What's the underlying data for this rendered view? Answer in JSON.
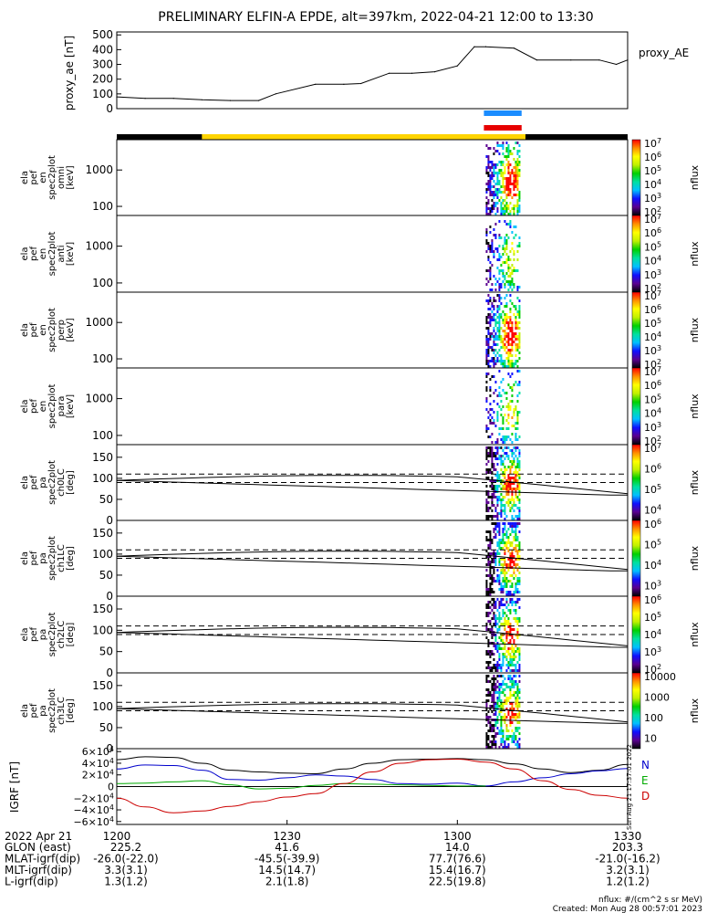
{
  "title": "PRELIMINARY ELFIN-A EPDE, alt=397km, 2022-04-21 12:00 to 13:30",
  "colors": {
    "science_zone_blue": "#1a8cff",
    "science_zone_red": "#e60000",
    "orbit_bar_black": "#000000",
    "orbit_bar_yellow": "#ffd400",
    "field_N": "#0000cc",
    "field_E": "#00aa00",
    "field_D": "#cc0000"
  },
  "colorbar_stops": [
    "#000000",
    "#5a0090",
    "#1010ff",
    "#00c0ff",
    "#00e0a0",
    "#00d000",
    "#c0f000",
    "#ffff00",
    "#ff9000",
    "#ff0000"
  ],
  "time_axis": {
    "ticks": [
      "1200",
      "1230",
      "1300",
      "1330"
    ],
    "date_label": "2022 Apr 21"
  },
  "ephemeris": [
    {
      "label": "GLON (east)",
      "values": [
        "225.2",
        "41.6",
        "14.0",
        "203.3"
      ]
    },
    {
      "label": "MLAT-igrf(dip)",
      "values": [
        "-26.0(-22.0)",
        "-45.5(-39.9)",
        "77.7(76.6)",
        "-21.0(-16.2)"
      ]
    },
    {
      "label": "MLT-igrf(dip)",
      "values": [
        "3.3(3.1)",
        "14.5(14.7)",
        "15.4(16.7)",
        "3.2(3.1)"
      ]
    },
    {
      "label": "L-igrf(dip)",
      "values": [
        "1.3(1.2)",
        "2.1(1.8)",
        "22.5(19.8)",
        "1.2(1.2)"
      ]
    }
  ],
  "footer": {
    "units": "nflux: #/(cm^2 s sr MeV)",
    "created": "Created: Mon Aug 28 00:57:01 2023",
    "side_stamp": "Sun Aug 21 17:37:01 2022"
  },
  "chart_data": [
    {
      "type": "line",
      "panel": "proxy_ae",
      "ylabel": "proxy_ae [nT]",
      "legend": "proxy_AE",
      "ylim": [
        0,
        520
      ],
      "yticks": [
        "500",
        "400",
        "300",
        "200",
        "100",
        "0"
      ],
      "x": [
        "12:00",
        "12:05",
        "12:10",
        "12:15",
        "12:20",
        "12:25",
        "12:28",
        "12:35",
        "12:40",
        "12:43",
        "12:48",
        "12:52",
        "12:56",
        "13:00",
        "13:03",
        "13:05",
        "13:10",
        "13:14",
        "13:20",
        "13:25",
        "13:28",
        "13:30"
      ],
      "values": [
        80,
        70,
        70,
        60,
        55,
        55,
        100,
        165,
        165,
        170,
        240,
        240,
        250,
        290,
        420,
        420,
        410,
        330,
        330,
        330,
        300,
        330
      ]
    },
    {
      "type": "heatmap",
      "panel": "ela pef en spec2plot omni",
      "ylabel": [
        "ela",
        "pef",
        "en",
        "spec2plot",
        "omni",
        "[keV]"
      ],
      "yticks": [
        "1000",
        "100"
      ],
      "colorbar_ticks": [
        "10^7",
        "10^6",
        "10^5",
        "10^4",
        "10^3",
        "10^2"
      ],
      "colorbar_label": "nflux",
      "active_interval": [
        "13:05",
        "13:11"
      ]
    },
    {
      "type": "heatmap",
      "panel": "ela pef en spec2plot anti",
      "ylabel": [
        "ela",
        "pef",
        "en",
        "spec2plot",
        "anti",
        "[keV]"
      ],
      "yticks": [
        "1000",
        "100"
      ],
      "colorbar_ticks": [
        "10^7",
        "10^6",
        "10^5",
        "10^4",
        "10^3",
        "10^2"
      ],
      "colorbar_label": "nflux",
      "active_interval": [
        "13:05",
        "13:11"
      ]
    },
    {
      "type": "heatmap",
      "panel": "ela pef en spec2plot perp",
      "ylabel": [
        "ela",
        "pef",
        "en",
        "spec2plot",
        "perp",
        "[keV]"
      ],
      "yticks": [
        "1000",
        "100"
      ],
      "colorbar_ticks": [
        "10^7",
        "10^6",
        "10^5",
        "10^4",
        "10^3",
        "10^2"
      ],
      "colorbar_label": "nflux",
      "active_interval": [
        "13:05",
        "13:11"
      ]
    },
    {
      "type": "heatmap",
      "panel": "ela pef en spec2plot para",
      "ylabel": [
        "ela",
        "pef",
        "en",
        "spec2plot",
        "para",
        "[keV]"
      ],
      "yticks": [
        "1000",
        "100"
      ],
      "colorbar_ticks": [
        "10^7",
        "10^6",
        "10^5",
        "10^4",
        "10^3",
        "10^2"
      ],
      "colorbar_label": "nflux",
      "active_interval": [
        "13:05",
        "13:11"
      ]
    },
    {
      "type": "heatmap",
      "panel": "ela pef pa spec2plot ch0LC",
      "ylabel": [
        "ela",
        "pef",
        "pa",
        "spec2plot",
        "ch0LC",
        "[deg]"
      ],
      "yticks": [
        "150",
        "100",
        "50",
        "0"
      ],
      "ylim": [
        0,
        180
      ],
      "colorbar_ticks": [
        "10^7",
        "10^6",
        "10^5",
        "10^4"
      ],
      "colorbar_label": "nflux",
      "active_interval": [
        "13:05",
        "13:11"
      ]
    },
    {
      "type": "heatmap",
      "panel": "ela pef pa spec2plot ch1LC",
      "ylabel": [
        "ela",
        "pef",
        "pa",
        "spec2plot",
        "ch1LC",
        "[deg]"
      ],
      "yticks": [
        "150",
        "100",
        "50",
        "0"
      ],
      "ylim": [
        0,
        180
      ],
      "colorbar_ticks": [
        "10^6",
        "10^5",
        "10^4",
        "10^3"
      ],
      "colorbar_label": "nflux",
      "active_interval": [
        "13:05",
        "13:11"
      ]
    },
    {
      "type": "heatmap",
      "panel": "ela pef pa spec2plot ch2LC",
      "ylabel": [
        "ela",
        "pef",
        "pa",
        "spec2plot",
        "ch2LC",
        "[deg]"
      ],
      "yticks": [
        "150",
        "100",
        "50",
        "0"
      ],
      "ylim": [
        0,
        180
      ],
      "colorbar_ticks": [
        "10^6",
        "10^5",
        "10^4",
        "10^3",
        "10^2"
      ],
      "colorbar_label": "nflux",
      "active_interval": [
        "13:05",
        "13:11"
      ]
    },
    {
      "type": "heatmap",
      "panel": "ela pef pa spec2plot ch3LC",
      "ylabel": [
        "ela",
        "pef",
        "pa",
        "spec2plot",
        "ch3LC",
        "[deg]"
      ],
      "yticks": [
        "150",
        "100",
        "50",
        "0"
      ],
      "ylim": [
        0,
        180
      ],
      "colorbar_ticks": [
        "10000",
        "1000",
        "100",
        "10"
      ],
      "colorbar_label": "nflux",
      "active_interval": [
        "13:05",
        "13:11"
      ]
    },
    {
      "type": "line",
      "panel": "IGRF",
      "ylabel": "IGRF [nT]",
      "ylim": [
        -65000,
        65000
      ],
      "yticks": [
        "6×10^4",
        "4×10^4",
        "2×10^4",
        "0",
        "−2×10^4",
        "−4×10^4",
        "−6×10^4"
      ],
      "x": [
        "12:00",
        "12:05",
        "12:10",
        "12:15",
        "12:20",
        "12:25",
        "12:30",
        "12:35",
        "12:40",
        "12:45",
        "12:50",
        "12:55",
        "13:00",
        "13:05",
        "13:10",
        "13:15",
        "13:20",
        "13:25",
        "13:30"
      ],
      "series": [
        {
          "name": "N",
          "values": [
            30000,
            37000,
            36000,
            28000,
            12000,
            11000,
            15000,
            20000,
            18000,
            12000,
            5000,
            4000,
            6000,
            1000,
            8000,
            15000,
            22000,
            27000,
            31000
          ]
        },
        {
          "name": "E",
          "values": [
            5000,
            6000,
            8000,
            10000,
            3000,
            -4000,
            -3000,
            2000,
            5000,
            4000,
            3000,
            2000,
            1000,
            1000,
            null,
            null,
            null,
            null,
            null
          ]
        },
        {
          "name": "D",
          "values": [
            -20000,
            -35000,
            -45000,
            -42000,
            -34000,
            -26000,
            -18000,
            -12000,
            5000,
            25000,
            40000,
            46000,
            47000,
            42000,
            30000,
            10000,
            -5000,
            -15000,
            -20000
          ]
        }
      ],
      "total_field": [
        46000,
        51000,
        50000,
        40000,
        28000,
        25000,
        23000,
        22000,
        30000,
        40000,
        46000,
        47000,
        48000,
        46000,
        39000,
        30000,
        24000,
        28000,
        38000
      ]
    }
  ]
}
